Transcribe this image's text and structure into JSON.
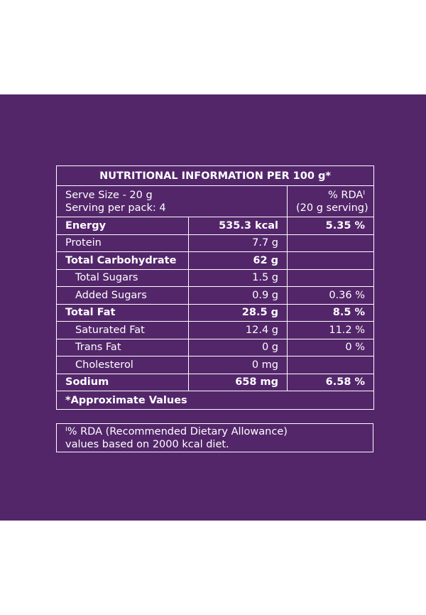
{
  "header": {
    "title": "NUTRITIONAL INFORMATION PER 100 g*"
  },
  "serving": {
    "lines": [
      "Serve Size - 20 g",
      "Serving per pack: 4"
    ],
    "rda_lines": [
      "% RDAᴵ",
      "(20 g serving)"
    ]
  },
  "table": {
    "rows": [
      [
        "Energy",
        "535.3 kcal",
        "5.35 %"
      ],
      [
        "Protein",
        "7.7 g"
      ],
      [
        "Total Carbohydrate",
        "62 g"
      ],
      [
        "Total Sugars",
        "1.5 g"
      ],
      [
        "Added Sugars",
        "0.9 g",
        "0.36 %"
      ],
      [
        "Total Fat",
        "28.5 g",
        "8.5 %"
      ],
      [
        "Saturated Fat",
        "12.4 g",
        "11.2 %"
      ],
      [
        "Trans Fat",
        "0 g",
        "0 %"
      ],
      [
        "Cholesterol",
        "0 mg"
      ],
      [
        "Sodium",
        "658 mg",
        "6.58 %"
      ]
    ]
  },
  "note": "*Approximate Values",
  "footnote": {
    "lines": [
      "ᴵ% RDA (Recommended Dietary Allowance)",
      "values based on 2000 kcal diet."
    ]
  }
}
